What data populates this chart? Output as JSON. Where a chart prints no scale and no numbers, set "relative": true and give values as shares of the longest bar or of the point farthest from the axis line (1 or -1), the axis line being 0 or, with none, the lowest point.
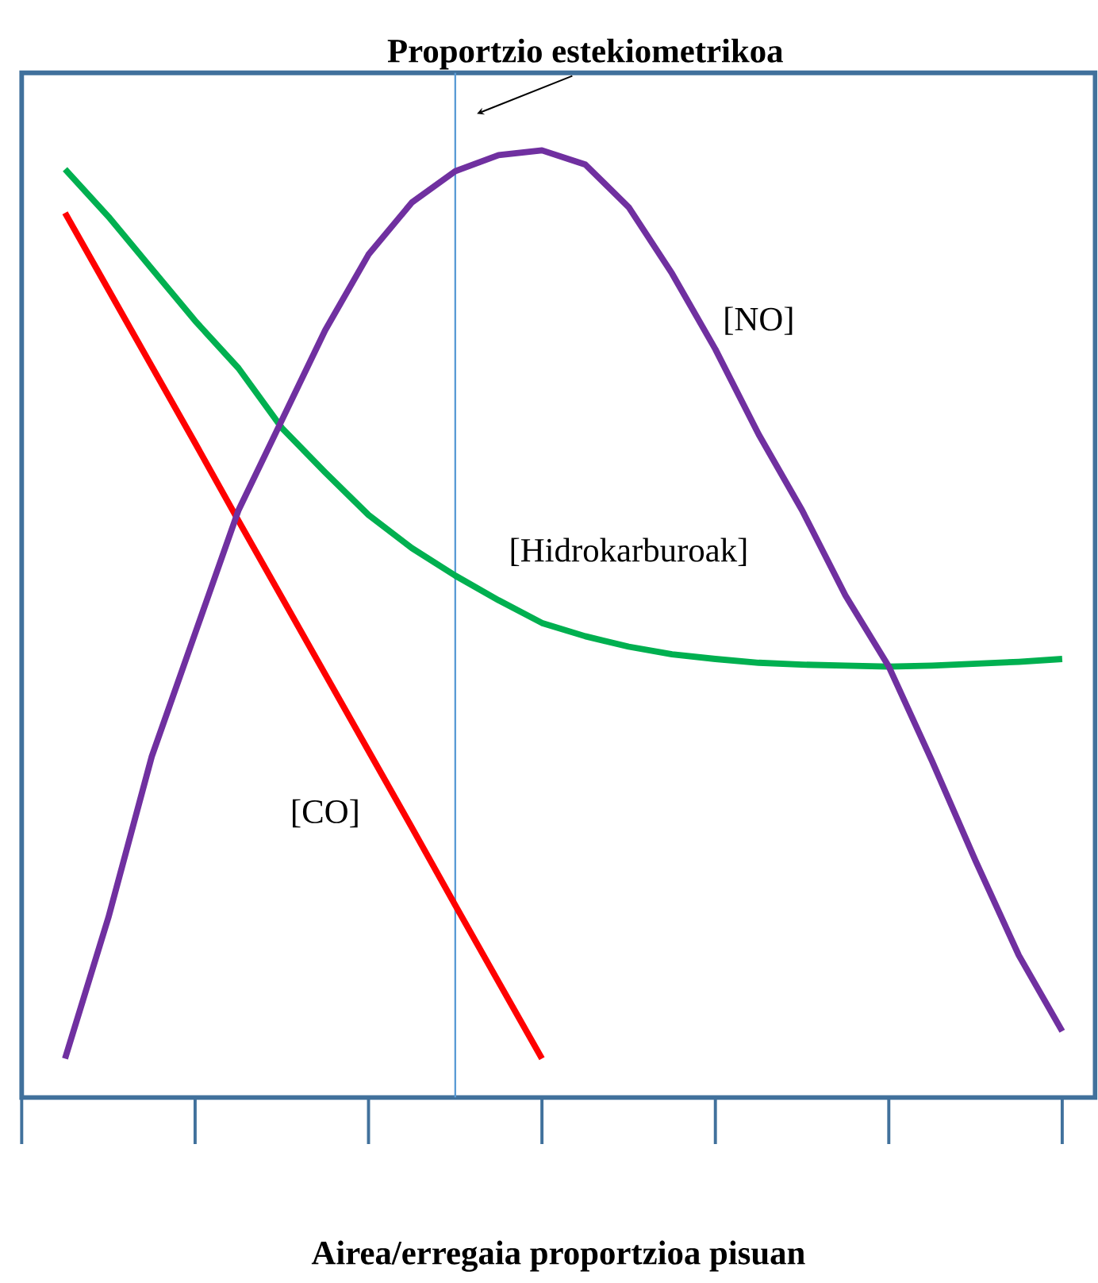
{
  "chart_data": {
    "type": "line",
    "relative": true,
    "xlabel": "Airea/erregaia proportzioa pisuan",
    "categories": [
      null,
      null,
      null,
      null,
      null,
      null,
      null,
      null,
      null,
      null,
      null,
      null,
      null,
      null,
      null,
      null,
      null,
      null,
      null,
      null,
      null,
      null,
      null,
      null,
      null
    ],
    "grid": false,
    "legend": false,
    "marker": "none",
    "line_style": "solid",
    "series": [
      {
        "name": "[CO]",
        "color": "#ff0000",
        "values": [
          null,
          0.934,
          0.853,
          0.772,
          0.691,
          0.609,
          0.528,
          0.447,
          0.366,
          0.285,
          0.203,
          0.122,
          0.041,
          null,
          null,
          null,
          null,
          null,
          null,
          null,
          null,
          null,
          null,
          null,
          null
        ]
      },
      {
        "name": "[Hidrokarburoak]",
        "color": "#00b050",
        "values": [
          null,
          0.98,
          0.93,
          0.875,
          0.82,
          0.77,
          0.707,
          0.66,
          0.615,
          0.58,
          0.551,
          0.525,
          0.501,
          0.487,
          0.476,
          0.468,
          0.463,
          0.459,
          0.457,
          0.456,
          0.455,
          0.456,
          0.458,
          0.46,
          0.463
        ]
      },
      {
        "name": "[NO]",
        "color": "#7030a0",
        "values": [
          null,
          0.041,
          0.19,
          0.36,
          0.49,
          0.62,
          0.715,
          0.81,
          0.89,
          0.945,
          0.978,
          0.995,
          1.0,
          0.985,
          0.94,
          0.87,
          0.79,
          0.7,
          0.62,
          0.53,
          0.455,
          0.355,
          0.25,
          0.15,
          0.07
        ]
      }
    ],
    "annotations": [
      "Proportzio estekiometrikoa"
    ]
  }
}
